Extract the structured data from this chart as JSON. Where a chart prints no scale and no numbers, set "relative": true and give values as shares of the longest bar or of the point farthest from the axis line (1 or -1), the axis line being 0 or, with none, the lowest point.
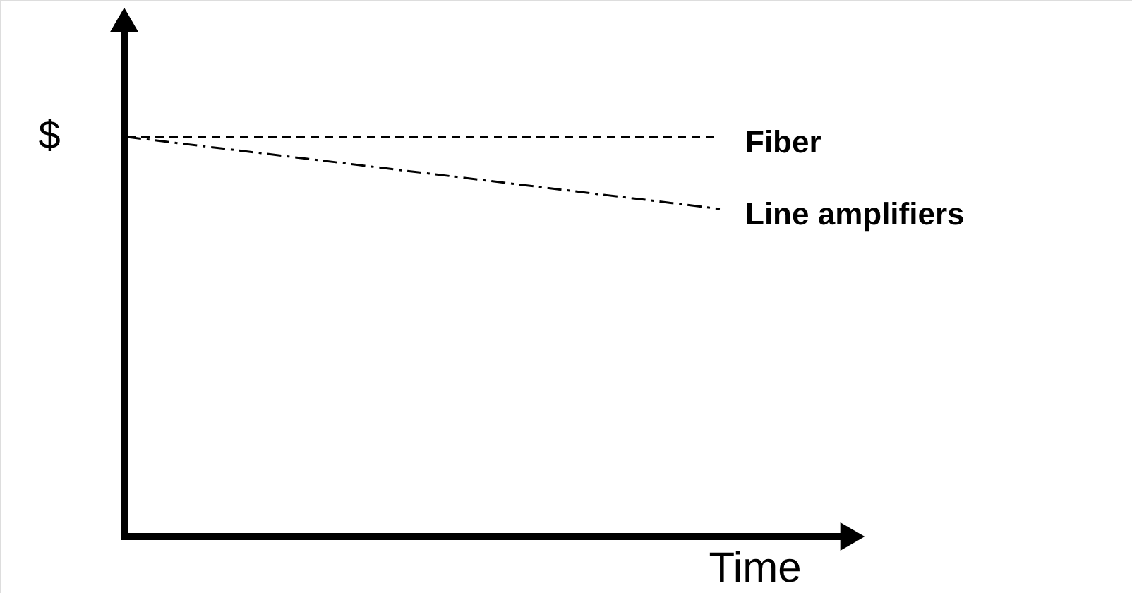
{
  "chart_data": {
    "type": "line",
    "relative": true,
    "xlabel": "Time",
    "ylabel": "$",
    "categories": [
      null,
      null
    ],
    "series": [
      {
        "name": "Fiber",
        "color": "#000000",
        "values": [
          1,
          1
        ],
        "line_style": "dashed"
      },
      {
        "name": "Line amplifiers",
        "color": "#000000",
        "values": [
          1,
          0.82
        ],
        "line_style": "dashdot"
      }
    ],
    "legend": false,
    "marker": "none"
  }
}
